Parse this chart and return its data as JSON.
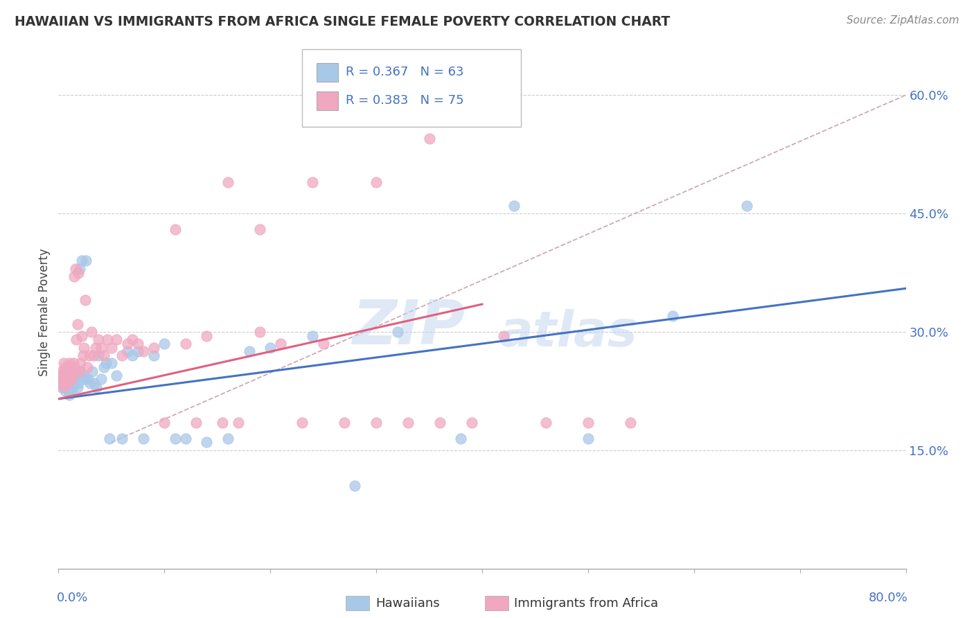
{
  "title": "HAWAIIAN VS IMMIGRANTS FROM AFRICA SINGLE FEMALE POVERTY CORRELATION CHART",
  "source": "Source: ZipAtlas.com",
  "ylabel": "Single Female Poverty",
  "right_yticks": [
    "60.0%",
    "45.0%",
    "30.0%",
    "15.0%"
  ],
  "right_ytick_vals": [
    0.6,
    0.45,
    0.3,
    0.15
  ],
  "xmin": 0.0,
  "xmax": 0.8,
  "ymin": 0.0,
  "ymax": 0.65,
  "hawaiian_color": "#a8c8e8",
  "african_color": "#f0a8c0",
  "line_color_hawaiian": "#4472c4",
  "line_color_african": "#e06080",
  "diagonal_color": "#d0a0b0",
  "background_color": "#ffffff",
  "watermark_color": "#c5d8ee",
  "hawaiians_x": [
    0.002,
    0.003,
    0.004,
    0.005,
    0.005,
    0.006,
    0.006,
    0.007,
    0.007,
    0.008,
    0.009,
    0.01,
    0.01,
    0.011,
    0.012,
    0.013,
    0.013,
    0.014,
    0.015,
    0.015,
    0.016,
    0.017,
    0.018,
    0.019,
    0.02,
    0.021,
    0.022,
    0.024,
    0.025,
    0.026,
    0.028,
    0.03,
    0.032,
    0.034,
    0.036,
    0.038,
    0.04,
    0.043,
    0.045,
    0.048,
    0.05,
    0.055,
    0.06,
    0.065,
    0.07,
    0.075,
    0.08,
    0.09,
    0.1,
    0.11,
    0.12,
    0.14,
    0.16,
    0.18,
    0.2,
    0.24,
    0.28,
    0.32,
    0.38,
    0.43,
    0.5,
    0.58,
    0.65
  ],
  "hawaiians_y": [
    0.24,
    0.23,
    0.245,
    0.235,
    0.25,
    0.225,
    0.24,
    0.235,
    0.245,
    0.23,
    0.25,
    0.22,
    0.24,
    0.235,
    0.225,
    0.23,
    0.245,
    0.24,
    0.235,
    0.25,
    0.24,
    0.245,
    0.23,
    0.235,
    0.38,
    0.25,
    0.39,
    0.245,
    0.24,
    0.39,
    0.24,
    0.235,
    0.25,
    0.235,
    0.23,
    0.27,
    0.24,
    0.255,
    0.26,
    0.165,
    0.26,
    0.245,
    0.165,
    0.275,
    0.27,
    0.275,
    0.165,
    0.27,
    0.285,
    0.165,
    0.165,
    0.16,
    0.165,
    0.275,
    0.28,
    0.295,
    0.105,
    0.3,
    0.165,
    0.46,
    0.165,
    0.32,
    0.46
  ],
  "africans_x": [
    0.002,
    0.003,
    0.003,
    0.004,
    0.005,
    0.005,
    0.006,
    0.006,
    0.007,
    0.007,
    0.008,
    0.009,
    0.009,
    0.01,
    0.01,
    0.011,
    0.012,
    0.012,
    0.013,
    0.014,
    0.015,
    0.015,
    0.016,
    0.016,
    0.017,
    0.018,
    0.019,
    0.02,
    0.021,
    0.022,
    0.023,
    0.024,
    0.025,
    0.027,
    0.029,
    0.031,
    0.033,
    0.035,
    0.038,
    0.04,
    0.043,
    0.046,
    0.05,
    0.055,
    0.06,
    0.065,
    0.07,
    0.075,
    0.08,
    0.09,
    0.1,
    0.11,
    0.12,
    0.13,
    0.14,
    0.155,
    0.17,
    0.19,
    0.21,
    0.23,
    0.25,
    0.27,
    0.3,
    0.33,
    0.36,
    0.39,
    0.42,
    0.46,
    0.5,
    0.54,
    0.24,
    0.19,
    0.16,
    0.3,
    0.35
  ],
  "africans_y": [
    0.235,
    0.24,
    0.25,
    0.245,
    0.23,
    0.26,
    0.245,
    0.255,
    0.235,
    0.25,
    0.245,
    0.235,
    0.255,
    0.24,
    0.26,
    0.25,
    0.24,
    0.255,
    0.245,
    0.26,
    0.37,
    0.255,
    0.38,
    0.25,
    0.29,
    0.31,
    0.375,
    0.25,
    0.26,
    0.295,
    0.27,
    0.28,
    0.34,
    0.255,
    0.27,
    0.3,
    0.27,
    0.28,
    0.29,
    0.28,
    0.27,
    0.29,
    0.28,
    0.29,
    0.27,
    0.285,
    0.29,
    0.285,
    0.275,
    0.28,
    0.185,
    0.43,
    0.285,
    0.185,
    0.295,
    0.185,
    0.185,
    0.3,
    0.285,
    0.185,
    0.285,
    0.185,
    0.185,
    0.185,
    0.185,
    0.185,
    0.295,
    0.185,
    0.185,
    0.185,
    0.49,
    0.43,
    0.49,
    0.49,
    0.545
  ]
}
